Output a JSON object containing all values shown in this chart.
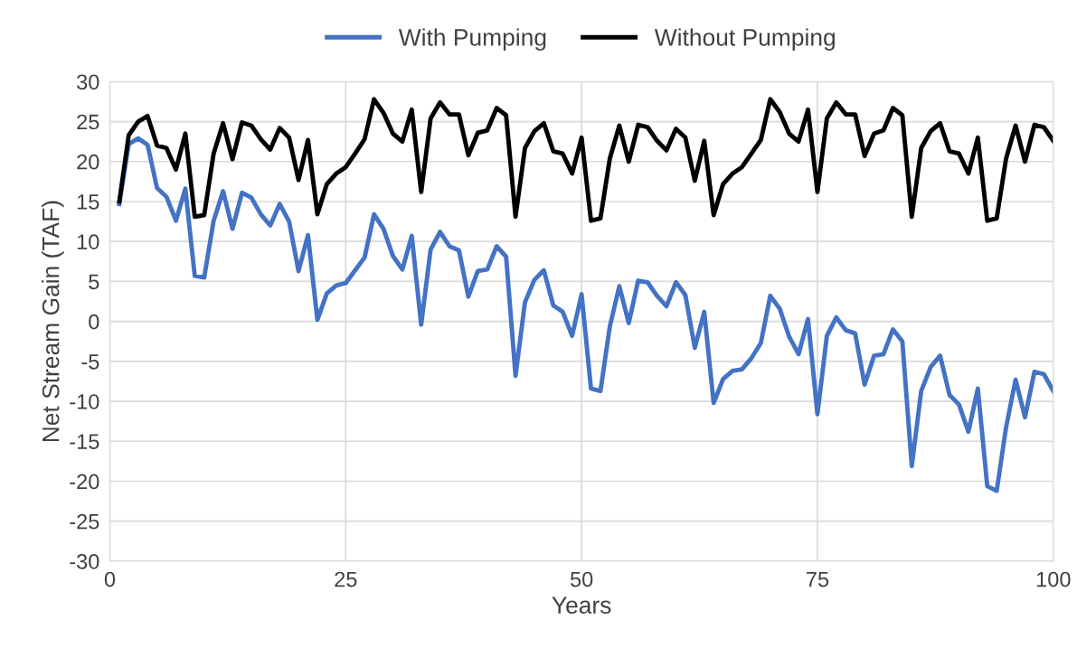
{
  "chart_data": {
    "type": "line",
    "xlabel": "Years",
    "ylabel": "Net Stream Gain (TAF)",
    "xlim": [
      0,
      100
    ],
    "xticks": [
      0,
      25,
      50,
      75,
      100
    ],
    "ylim": [
      -30,
      30
    ],
    "yticks": [
      -30,
      -25,
      -20,
      -15,
      -10,
      -5,
      0,
      5,
      10,
      15,
      20,
      25,
      30
    ],
    "grid": true,
    "legend": "top",
    "marker": "none",
    "line_style": "solid",
    "x": [
      1,
      2,
      3,
      4,
      5,
      6,
      7,
      8,
      9,
      10,
      11,
      12,
      13,
      14,
      15,
      16,
      17,
      18,
      19,
      20,
      21,
      22,
      23,
      24,
      25,
      26,
      27,
      28,
      29,
      30,
      31,
      32,
      33,
      34,
      35,
      36,
      37,
      38,
      39,
      40,
      41,
      42,
      43,
      44,
      45,
      46,
      47,
      48,
      49,
      50,
      51,
      52,
      53,
      54,
      55,
      56,
      57,
      58,
      59,
      60,
      61,
      62,
      63,
      64,
      65,
      66,
      67,
      68,
      69,
      70,
      71,
      72,
      73,
      74,
      75,
      76,
      77,
      78,
      79,
      80,
      81,
      82,
      83,
      84,
      85,
      86,
      87,
      88,
      89,
      90,
      91,
      92,
      93,
      94,
      95,
      96,
      97,
      98,
      99,
      100
    ],
    "series": [
      {
        "name": "With Pumping",
        "color": "#4472c4",
        "values": [
          14.7,
          22.2,
          22.9,
          22.1,
          16.7,
          15.6,
          12.6,
          16.6,
          5.7,
          5.5,
          12.6,
          16.3,
          11.6,
          16.1,
          15.5,
          13.4,
          12,
          14.7,
          12.5,
          6.3,
          10.8,
          0.2,
          3.5,
          4.5,
          4.8,
          6.4,
          8,
          13.4,
          11.6,
          8.2,
          6.5,
          10.7,
          -0.4,
          9,
          11.2,
          9.4,
          8.9,
          3.1,
          6.3,
          6.5,
          9.4,
          8.1,
          -6.8,
          2.4,
          5.2,
          6.4,
          2,
          1.2,
          -1.8,
          3.4,
          -8.4,
          -8.7,
          -0.6,
          4.4,
          -0.2,
          5.1,
          4.9,
          3.2,
          1.9,
          4.9,
          3.3,
          -3.3,
          1.2,
          -10.2,
          -7.2,
          -6.2,
          -6,
          -4.6,
          -2.7,
          3.2,
          1.6,
          -1.9,
          -4.1,
          0.3,
          -11.6,
          -1.8,
          0.5,
          -1.1,
          -1.5,
          -7.9,
          -4.3,
          -4.1,
          -1,
          -2.5,
          -18.1,
          -8.7,
          -5.7,
          -4.3,
          -9.2,
          -10.4,
          -13.8,
          -8.4,
          -20.6,
          -21.2,
          -13.2,
          -7.3,
          -12,
          -6.3,
          -6.6,
          -8.7
        ]
      },
      {
        "name": "Without Pumping",
        "color": "#000000",
        "values": [
          15,
          23.3,
          25,
          25.7,
          22,
          21.7,
          19,
          23.5,
          13.1,
          13.3,
          21,
          24.8,
          20.3,
          24.9,
          24.5,
          22.8,
          21.5,
          24.2,
          23,
          17.7,
          22.7,
          13.4,
          17.2,
          18.5,
          19.3,
          21,
          22.8,
          27.8,
          26.1,
          23.5,
          22.5,
          26.5,
          16.2,
          25.4,
          27.4,
          25.9,
          25.9,
          20.8,
          23.6,
          23.9,
          26.7,
          25.8,
          13.1,
          21.7,
          23.8,
          24.8,
          21.3,
          21,
          18.5,
          23,
          12.6,
          12.9,
          20.4,
          24.5,
          20,
          24.6,
          24.3,
          22.6,
          21.4,
          24.1,
          23,
          17.6,
          22.6,
          13.3,
          17.2,
          18.5,
          19.3,
          21,
          22.7,
          27.8,
          26.2,
          23.5,
          22.5,
          26.5,
          16.2,
          25.4,
          27.4,
          25.9,
          25.9,
          20.7,
          23.5,
          23.9,
          26.7,
          25.8,
          13.1,
          21.7,
          23.8,
          24.8,
          21.3,
          21,
          18.5,
          23,
          12.6,
          12.9,
          20.4,
          24.5,
          20,
          24.6,
          24.3,
          22.6
        ]
      }
    ]
  }
}
